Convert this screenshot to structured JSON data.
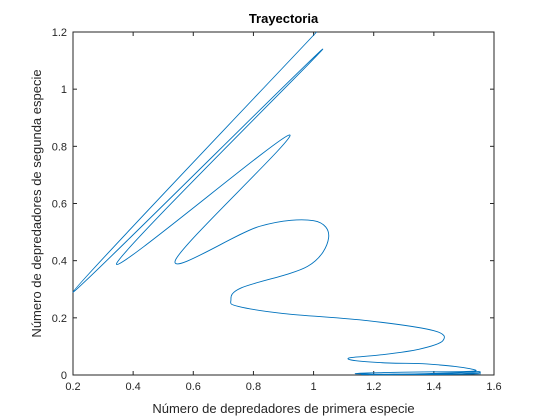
{
  "chart_data": {
    "type": "line",
    "title": "Trayectoria",
    "xlabel": "Número de depredadores de primera especie",
    "ylabel": "Número de depredadores de segunda especie",
    "xlim": [
      0.2,
      1.6
    ],
    "ylim": [
      0,
      1.2
    ],
    "x_ticks": [
      0.2,
      0.4,
      0.6,
      0.8,
      1,
      1.2,
      1.4,
      1.6
    ],
    "x_tick_labels": [
      "0.2",
      "0.4",
      "0.6",
      "0.8",
      "1",
      "1.2",
      "1.4",
      "1.6"
    ],
    "y_ticks": [
      0,
      0.2,
      0.4,
      0.6,
      0.8,
      1,
      1.2
    ],
    "y_tick_labels": [
      "0",
      "0.2",
      "0.4",
      "0.6",
      "0.8",
      "1",
      "1.2"
    ],
    "grid": false,
    "box": true,
    "line_color": "#0072BD",
    "axis_color": "#262626",
    "series": [
      {
        "x": [
          1.01,
          0.2,
          1.03,
          0.345,
          0.92,
          0.54,
          0.82,
          1.0,
          1.05,
          0.98,
          0.76,
          0.725,
          0.75,
          0.9,
          1.18,
          1.4,
          1.43,
          1.35,
          1.22,
          1.12,
          1.14,
          1.25,
          1.35,
          1.42,
          1.47,
          1.52,
          1.54,
          1.5,
          1.4,
          1.3,
          1.25,
          1.22,
          1.18,
          1.15,
          1.14,
          1.145,
          1.2,
          1.25,
          1.35,
          1.45,
          1.52,
          1.55,
          1.55,
          1.5,
          1.45,
          1.38,
          1.3,
          1.24,
          1.2,
          1.17,
          1.16,
          1.17,
          1.25,
          1.35,
          1.45,
          1.52,
          1.555,
          1.53,
          1.5,
          1.4,
          1.3,
          1.25,
          1.21,
          1.19,
          1.19,
          1.25,
          1.35,
          1.45,
          1.53
        ],
        "y": [
          1.2,
          0.29,
          1.14,
          0.39,
          0.84,
          0.4,
          0.52,
          0.54,
          0.48,
          0.38,
          0.305,
          0.26,
          0.24,
          0.215,
          0.19,
          0.155,
          0.12,
          0.09,
          0.07,
          0.06,
          0.05,
          0.042,
          0.04,
          0.035,
          0.03,
          0.022,
          0.015,
          0.012,
          0.011,
          0.01,
          0.009,
          0.008,
          0.007,
          0.006,
          0.005,
          0.004,
          0.003,
          0.003,
          0.004,
          0.007,
          0.01,
          0.012,
          0.008,
          0.005,
          0.004,
          0.003,
          0.0025,
          0.0022,
          0.002,
          0.0018,
          0.0017,
          0.0016,
          0.0016,
          0.0017,
          0.002,
          0.003,
          0.004,
          0.0035,
          0.003,
          0.0022,
          0.0016,
          0.0013,
          0.0012,
          0.0011,
          0.0012,
          0.0015,
          0.0022,
          0.003,
          0.0035
        ]
      }
    ]
  }
}
